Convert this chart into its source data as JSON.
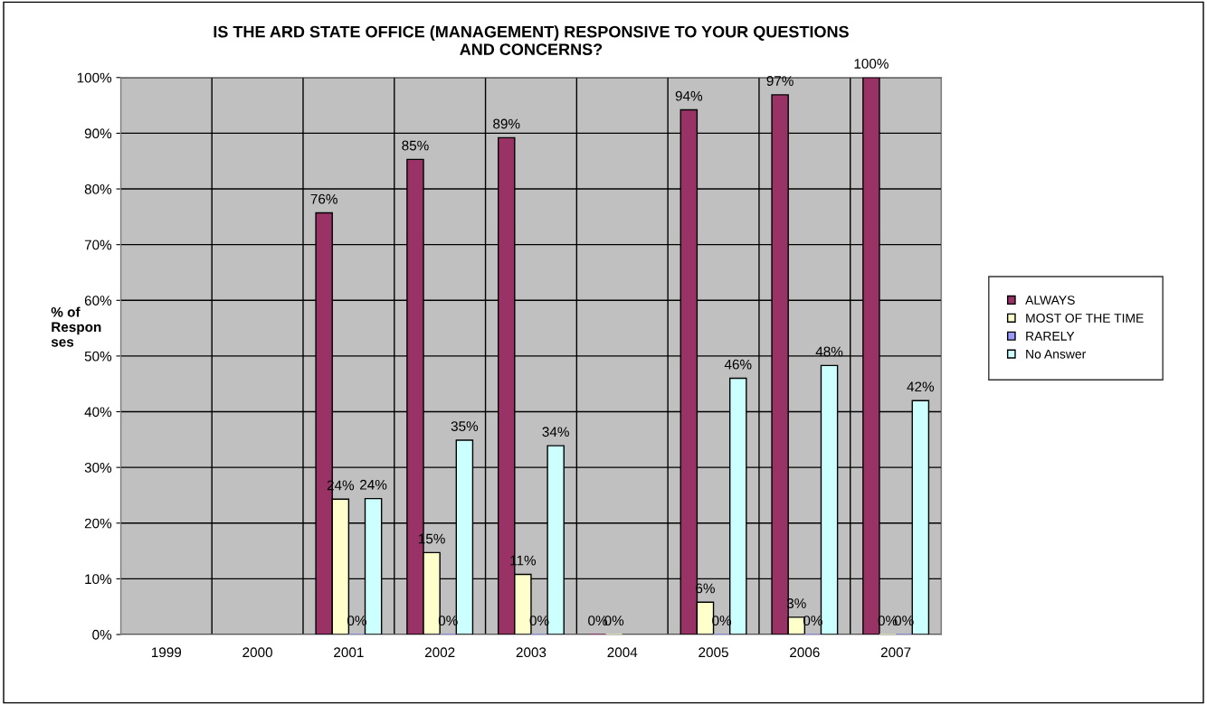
{
  "chart_data": {
    "type": "bar",
    "title": "IS THE ARD STATE OFFICE (MANAGEMENT) RESPONSIVE TO YOUR QUESTIONS\nAND CONCERNS?",
    "ylabel": "% of\nRespon\nses",
    "categories": [
      "1999",
      "2000",
      "2001",
      "2002",
      "2003",
      "2004",
      "2005",
      "2006",
      "2007"
    ],
    "series": [
      {
        "name": "ALWAYS",
        "color": "#993366",
        "values": [
          null,
          null,
          75.7,
          85.3,
          89.2,
          0,
          94.2,
          96.9,
          100
        ],
        "value_labels": [
          null,
          null,
          "76%",
          "85%",
          "89%",
          "0%",
          "94%",
          "97%",
          "100%"
        ]
      },
      {
        "name": "MOST OF THE TIME",
        "color": "#ffffcc",
        "values": [
          null,
          null,
          24.3,
          14.7,
          10.8,
          0,
          5.8,
          3.1,
          0
        ],
        "value_labels": [
          null,
          null,
          "24%",
          "15%",
          "11%",
          "0%",
          "6%",
          "3%",
          "0%"
        ]
      },
      {
        "name": "RARELY",
        "color": "#9999ff",
        "values": [
          null,
          null,
          0,
          0,
          0,
          null,
          0,
          0,
          0
        ],
        "value_labels": [
          null,
          null,
          "0%",
          "0%",
          "0%",
          null,
          "0%",
          "0%",
          "0%"
        ]
      },
      {
        "name": "No Answer",
        "color": "#ccffff",
        "values": [
          null,
          null,
          24.4,
          34.9,
          33.9,
          null,
          46.0,
          48.3,
          42.0
        ],
        "value_labels": [
          null,
          null,
          "24%",
          "35%",
          "34%",
          null,
          "46%",
          "48%",
          "42%"
        ]
      }
    ],
    "ylim": [
      0,
      100
    ],
    "yticks": [
      {
        "value": 0,
        "label": "0%"
      },
      {
        "value": 10,
        "label": "10%"
      },
      {
        "value": 20,
        "label": "20%"
      },
      {
        "value": 30,
        "label": "30%"
      },
      {
        "value": 40,
        "label": "40%"
      },
      {
        "value": 50,
        "label": "50%"
      },
      {
        "value": 60,
        "label": "60%"
      },
      {
        "value": 70,
        "label": "70%"
      },
      {
        "value": 80,
        "label": "80%"
      },
      {
        "value": 90,
        "label": "90%"
      },
      {
        "value": 100,
        "label": "100%"
      }
    ],
    "grid": true,
    "legend": "right"
  }
}
